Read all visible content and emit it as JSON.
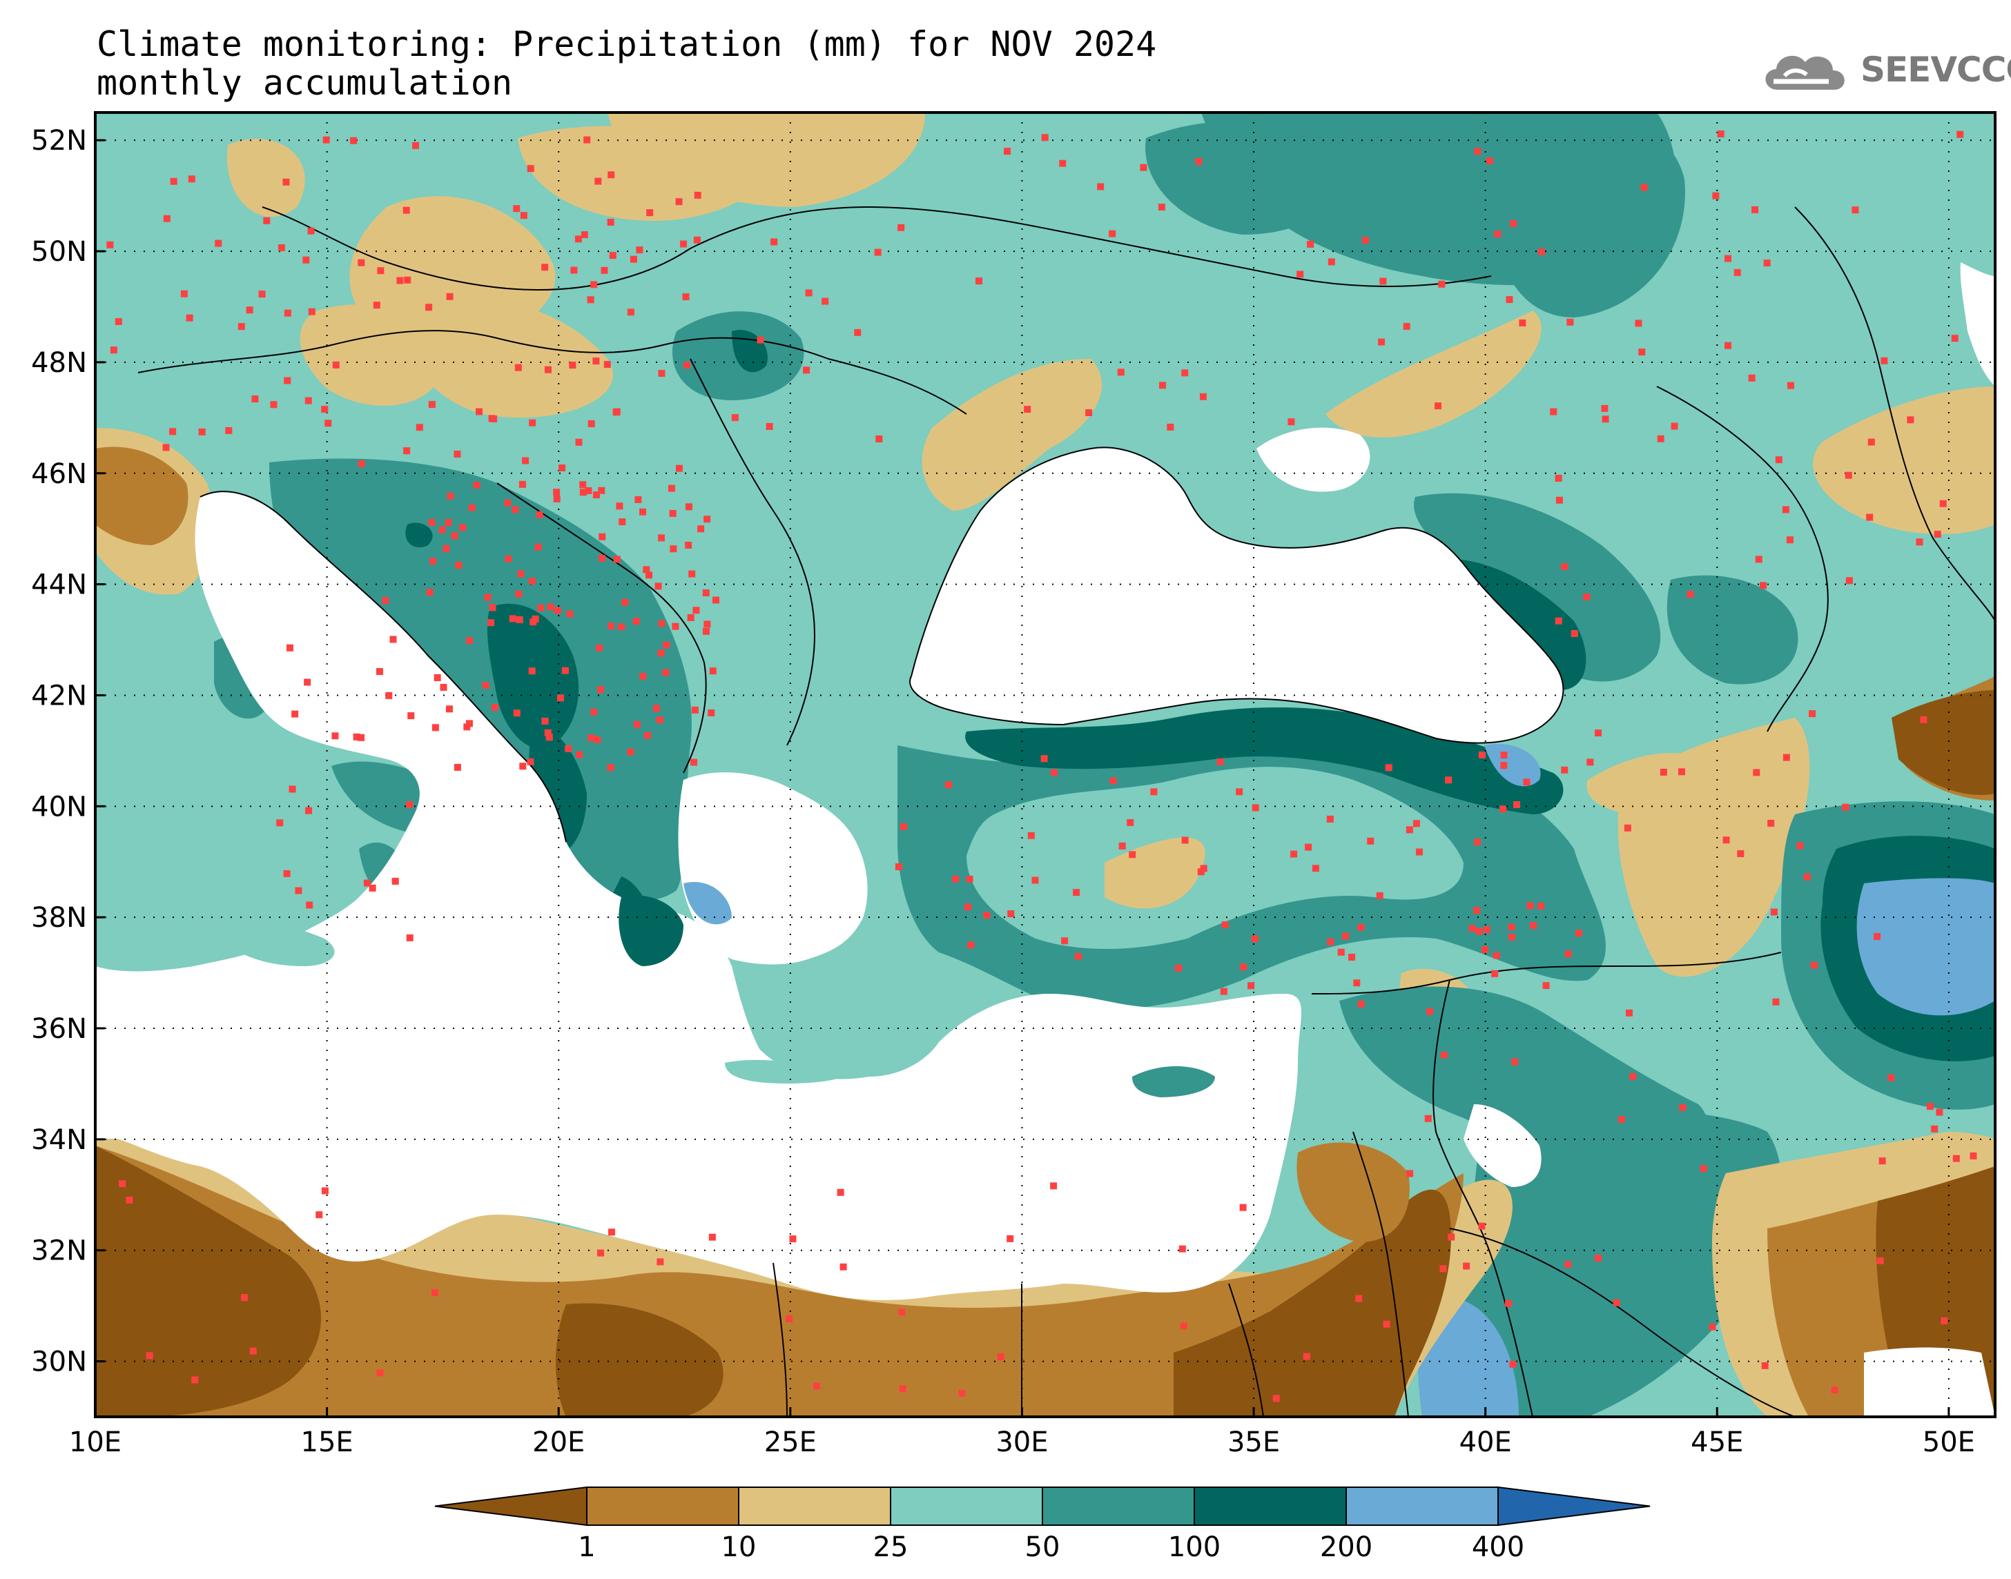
{
  "title_line1": "Climate monitoring: Precipitation (mm) for NOV 2024",
  "title_line2": "monthly accumulation",
  "logo_text": "SEEVCCC",
  "map": {
    "lon_range": [
      10,
      51
    ],
    "lat_range": [
      29,
      52.5
    ],
    "lon_ticks": [
      "10E",
      "15E",
      "20E",
      "25E",
      "30E",
      "35E",
      "40E",
      "45E",
      "50E"
    ],
    "lat_ticks": [
      "52N",
      "50N",
      "48N",
      "46N",
      "44N",
      "42N",
      "40N",
      "38N",
      "36N",
      "34N",
      "32N",
      "30N"
    ],
    "grid": "dotted"
  },
  "colorbar": {
    "colors": [
      "#8b5410",
      "#b87e30",
      "#e0c27f",
      "#7ecdbf",
      "#35968e",
      "#01675e",
      "#6aaad6",
      "#2166ac"
    ],
    "labels": [
      "1",
      "10",
      "25",
      "50",
      "100",
      "200",
      "400"
    ]
  },
  "station_color": "#ff4040"
}
